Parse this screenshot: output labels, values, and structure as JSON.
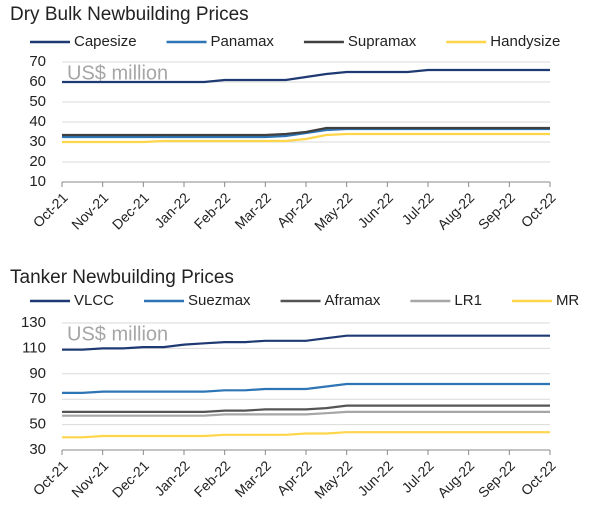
{
  "chart_data": [
    {
      "type": "line",
      "title": "Dry Bulk Newbuilding Prices",
      "annotation": "US$ million",
      "categories": [
        "Oct-21",
        null,
        "Nov-21",
        null,
        "Dec-21",
        null,
        "Jan-22",
        null,
        "Feb-22",
        null,
        "Mar-22",
        null,
        "Apr-22",
        null,
        "May-22",
        null,
        "Jun-22",
        null,
        "Jul-22",
        null,
        "Aug-22",
        null,
        "Sep-22",
        null,
        "Oct-22"
      ],
      "ylim": [
        10,
        70
      ],
      "yticks": [
        10,
        20,
        30,
        40,
        50,
        60,
        70
      ],
      "grid": true,
      "series": [
        {
          "name": "Capesize",
          "color": "#1f3a73",
          "values": [
            60,
            60,
            60,
            60,
            60,
            60,
            60,
            60,
            61,
            61,
            61,
            61,
            62.5,
            64,
            65,
            65,
            65,
            65,
            66,
            66,
            66,
            66,
            66,
            66,
            66
          ]
        },
        {
          "name": "Panamax",
          "color": "#2e75b6",
          "values": [
            32.5,
            32.5,
            32.5,
            32.5,
            32.5,
            32.5,
            32.5,
            32.5,
            32.5,
            32.5,
            32.5,
            33,
            34.5,
            36,
            36.5,
            36.5,
            36.5,
            36.5,
            36.5,
            36.5,
            36.5,
            36.5,
            36.5,
            36.5,
            36.5
          ]
        },
        {
          "name": "Supramax",
          "color": "#404040",
          "values": [
            33.5,
            33.5,
            33.5,
            33.5,
            33.5,
            33.5,
            33.5,
            33.5,
            33.5,
            33.5,
            33.5,
            34,
            35,
            37,
            37,
            37,
            37,
            37,
            37,
            37,
            37,
            37,
            37,
            37,
            37
          ]
        },
        {
          "name": "Handysize",
          "color": "#ffd54a",
          "values": [
            30,
            30,
            30,
            30,
            30,
            30.5,
            30.5,
            30.5,
            30.5,
            30.5,
            30.5,
            30.5,
            31.5,
            33.5,
            34,
            34,
            34,
            34,
            34,
            34,
            34,
            34,
            34,
            34,
            34
          ]
        }
      ]
    },
    {
      "type": "line",
      "title": "Tanker Newbuilding Prices",
      "annotation": "US$ million",
      "categories": [
        "Oct-21",
        null,
        "Nov-21",
        null,
        "Dec-21",
        null,
        "Jan-22",
        null,
        "Feb-22",
        null,
        "Mar-22",
        null,
        "Apr-22",
        null,
        "May-22",
        null,
        "Jun-22",
        null,
        "Jul-22",
        null,
        "Aug-22",
        null,
        "Sep-22",
        null,
        "Oct-22"
      ],
      "ylim": [
        30,
        130
      ],
      "yticks": [
        30,
        50,
        70,
        90,
        110,
        130
      ],
      "grid": true,
      "series": [
        {
          "name": "VLCC",
          "color": "#1f3a73",
          "values": [
            109,
            109,
            110,
            110,
            111,
            111,
            113,
            114,
            115,
            115,
            116,
            116,
            116,
            118,
            120,
            120,
            120,
            120,
            120,
            120,
            120,
            120,
            120,
            120,
            120
          ]
        },
        {
          "name": "Suezmax",
          "color": "#2e75b6",
          "values": [
            75,
            75,
            76,
            76,
            76,
            76,
            76,
            76,
            77,
            77,
            78,
            78,
            78,
            80,
            82,
            82,
            82,
            82,
            82,
            82,
            82,
            82,
            82,
            82,
            82
          ]
        },
        {
          "name": "Aframax",
          "color": "#555555",
          "values": [
            60,
            60,
            60,
            60,
            60,
            60,
            60,
            60,
            61,
            61,
            62,
            62,
            62,
            63,
            65,
            65,
            65,
            65,
            65,
            65,
            65,
            65,
            65,
            65,
            65
          ]
        },
        {
          "name": "LR1",
          "color": "#a6a6a6",
          "values": [
            57,
            57,
            57,
            57,
            57,
            57,
            57,
            57,
            58,
            58,
            58,
            58,
            58,
            59,
            60,
            60,
            60,
            60,
            60,
            60,
            60,
            60,
            60,
            60,
            60
          ]
        },
        {
          "name": "MR",
          "color": "#ffd54a",
          "values": [
            40,
            40,
            41,
            41,
            41,
            41,
            41,
            41,
            42,
            42,
            42,
            42,
            43,
            43,
            44,
            44,
            44,
            44,
            44,
            44,
            44,
            44,
            44,
            44,
            44
          ]
        }
      ]
    }
  ]
}
